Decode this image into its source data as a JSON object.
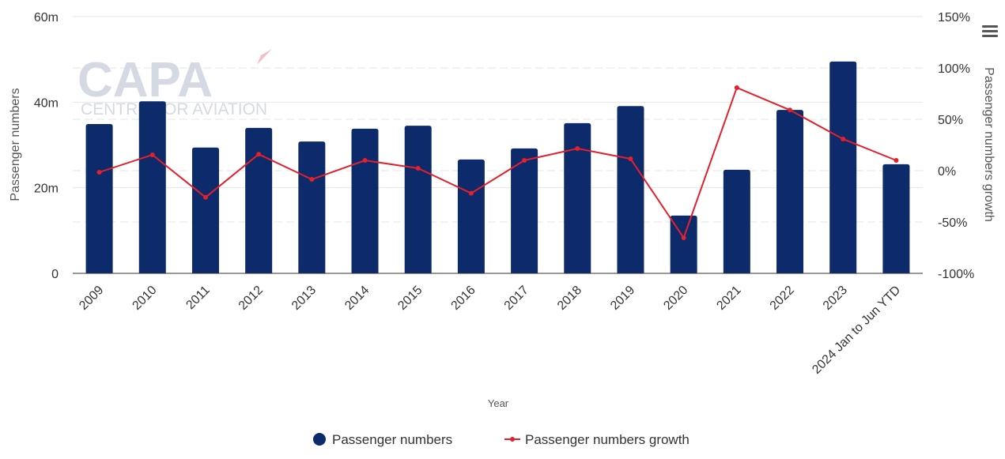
{
  "chart_data": {
    "type": "bar",
    "xlabel": "Year",
    "ylabel": "Passenger numbers",
    "y2label": "Passenger numbers growth",
    "categories": [
      "2009",
      "2010",
      "2011",
      "2012",
      "2013",
      "2014",
      "2015",
      "2016",
      "2017",
      "2018",
      "2019",
      "2020",
      "2021",
      "2022",
      "2023",
      "2024 Jan to Jun YTD"
    ],
    "ylim": [
      0,
      60000000
    ],
    "y2lim": [
      -100,
      150
    ],
    "yticks": [
      {
        "v": 0,
        "label": "0"
      },
      {
        "v": 20000000,
        "label": "20m"
      },
      {
        "v": 40000000,
        "label": "40m"
      },
      {
        "v": 60000000,
        "label": "60m"
      }
    ],
    "y2ticks": [
      {
        "v": -100,
        "label": "-100%"
      },
      {
        "v": -50,
        "label": "-50%"
      },
      {
        "v": 0,
        "label": "0%"
      },
      {
        "v": 50,
        "label": "50%"
      },
      {
        "v": 100,
        "label": "100%"
      },
      {
        "v": 150,
        "label": "150%"
      }
    ],
    "grid": true,
    "legend_position": "bottom",
    "series": [
      {
        "name": "Passenger numbers",
        "type": "bar",
        "axis": "left",
        "color": "#0d2a6b",
        "values": [
          34900000,
          40200000,
          29400000,
          34000000,
          30800000,
          33800000,
          34500000,
          26600000,
          29200000,
          35100000,
          39100000,
          13500000,
          24200000,
          38200000,
          49500000,
          25500000
        ]
      },
      {
        "name": "Passenger numbers growth",
        "type": "line",
        "axis": "right",
        "color": "#e3202b",
        "values": [
          -1.5,
          15.4,
          -26,
          16,
          -8.5,
          10,
          2.3,
          -22,
          10,
          21.5,
          11.5,
          -65.4,
          80.8,
          59,
          30.8,
          10
        ]
      }
    ]
  },
  "watermark": {
    "text1": "CAPA",
    "text2": "CENTRE FOR AVIATION"
  },
  "menu_icon": "hamburger-icon"
}
